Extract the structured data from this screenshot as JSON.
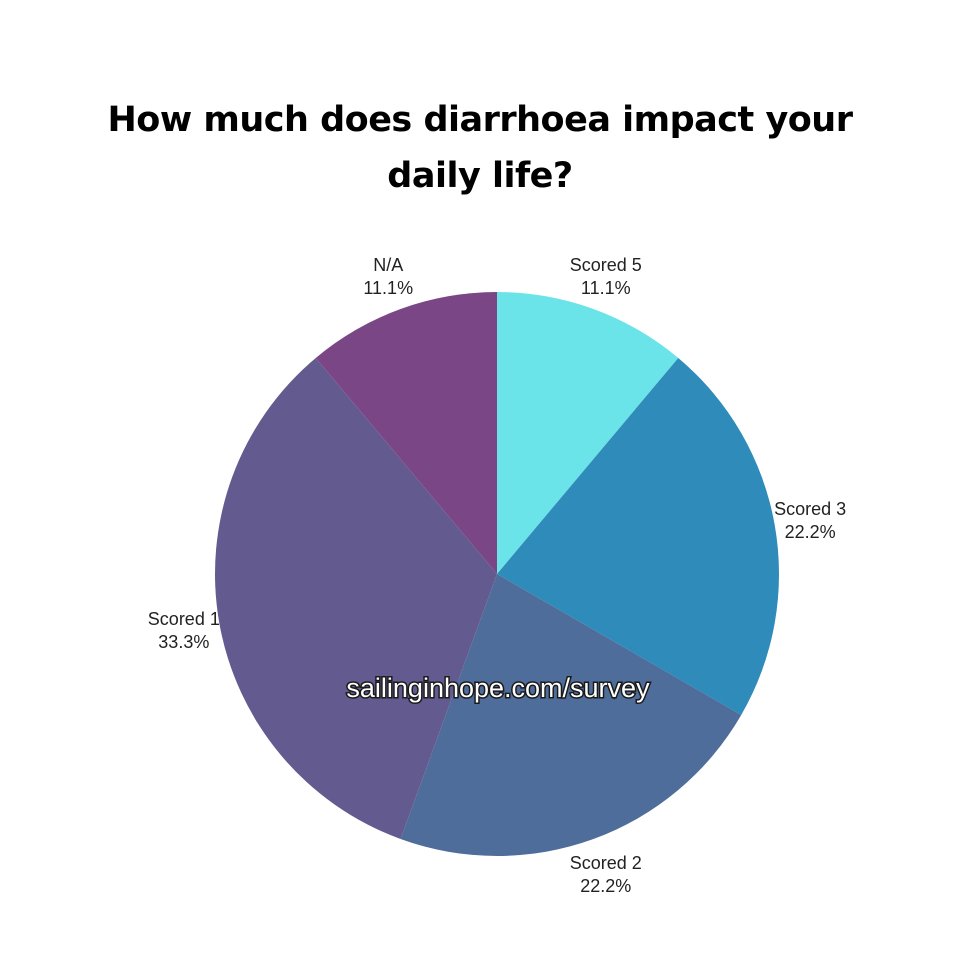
{
  "chart_data": {
    "type": "pie",
    "title_lines": [
      "How much does diarrhoea impact your",
      "daily life?"
    ],
    "slices": [
      {
        "label": "Scored 5",
        "value": 11.1,
        "value_label": "11.1%",
        "color": "#6ae4e8"
      },
      {
        "label": "Scored 3",
        "value": 22.2,
        "value_label": "22.2%",
        "color": "#2e8bba"
      },
      {
        "label": "Scored 2",
        "value": 22.2,
        "value_label": "22.2%",
        "color": "#4f6d9a"
      },
      {
        "label": "Scored 1",
        "value": 33.3,
        "value_label": "33.3%",
        "color": "#635b8f"
      },
      {
        "label": "N/A",
        "value": 11.1,
        "value_label": "11.1%",
        "color": "#7b4686"
      }
    ],
    "start_angle_deg": 0,
    "direction": "clockwise"
  },
  "watermark": "sailinginhope.com/survey"
}
